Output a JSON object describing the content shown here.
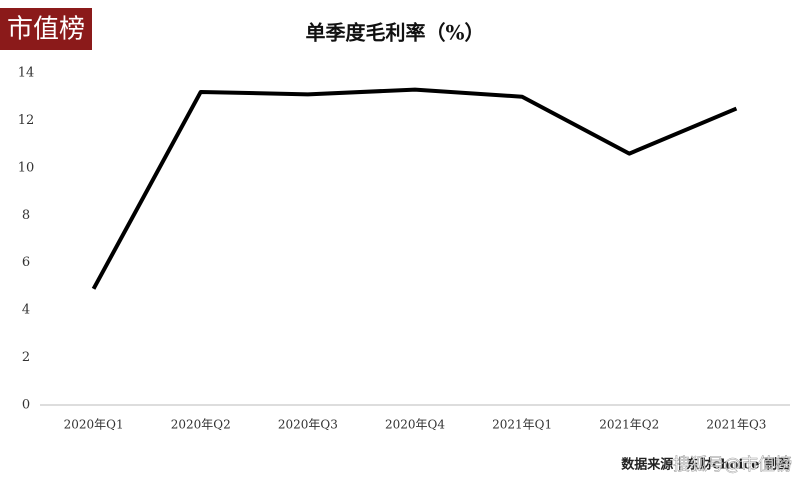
{
  "logo": "市值榜",
  "chart_data": {
    "type": "line",
    "title": "单季度毛利率（%）",
    "categories": [
      "2020年Q1",
      "2020年Q2",
      "2020年Q3",
      "2020年Q4",
      "2021年Q1",
      "2021年Q2",
      "2021年Q3"
    ],
    "series": [
      {
        "name": "单季度毛利率",
        "color": "#000000",
        "values": [
          4.9,
          13.2,
          13.1,
          13.3,
          13.0,
          10.6,
          12.5
        ]
      }
    ],
    "ylim": [
      0,
      14
    ],
    "yticks": [
      0,
      2,
      4,
      6,
      8,
      10,
      12,
      14
    ],
    "grid": false
  },
  "footer": {
    "source": "数据来源｜东财choice 制图",
    "watermark": "搜狐号@市值榜"
  }
}
